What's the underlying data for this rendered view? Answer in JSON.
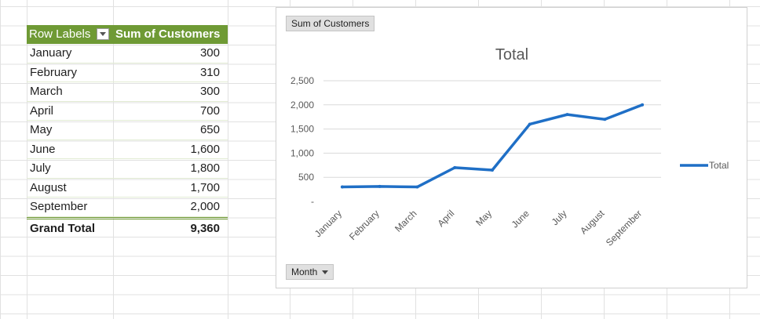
{
  "pivot": {
    "header_row_labels": "Row Labels",
    "header_sum": "Sum of Customers",
    "rows": [
      {
        "label": "January",
        "value": "300"
      },
      {
        "label": "February",
        "value": "310"
      },
      {
        "label": "March",
        "value": "300"
      },
      {
        "label": "April",
        "value": "700"
      },
      {
        "label": "May",
        "value": "650"
      },
      {
        "label": "June",
        "value": "1,600"
      },
      {
        "label": "July",
        "value": "1,800"
      },
      {
        "label": "August",
        "value": "1,700"
      },
      {
        "label": "September",
        "value": "2,000"
      }
    ],
    "total_label": "Grand Total",
    "total_value": "9,360"
  },
  "chart_buttons": {
    "value_field": "Sum of Customers",
    "axis_field": "Month"
  },
  "colors": {
    "pivot_header": "#6f9a35",
    "series_line": "#1f6fc6"
  },
  "chart_data": {
    "type": "line",
    "title": "Total",
    "xlabel": "",
    "ylabel": "",
    "categories": [
      "January",
      "February",
      "March",
      "April",
      "May",
      "June",
      "July",
      "August",
      "September"
    ],
    "series": [
      {
        "name": "Total",
        "values": [
          300,
          310,
          300,
          700,
          650,
          1600,
          1800,
          1700,
          2000
        ]
      }
    ],
    "yticks": [
      "-",
      "500",
      "1,000",
      "1,500",
      "2,000",
      "2,500"
    ],
    "ylim": [
      0,
      2500
    ],
    "grid": true,
    "legend_position": "right"
  }
}
